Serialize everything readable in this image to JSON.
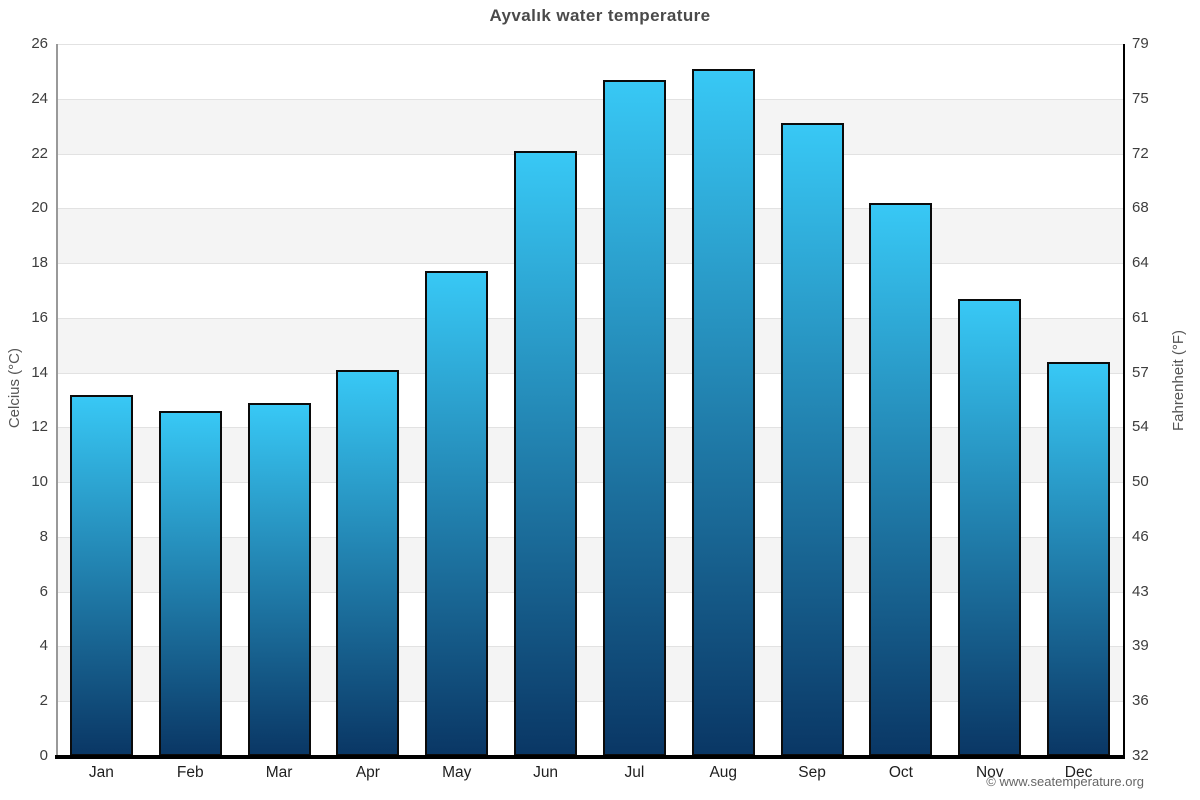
{
  "title": "Ayvalık water temperature",
  "footer": "© www.seatemperature.org",
  "y_axis_left": {
    "label": "Celcius (°C)"
  },
  "y_axis_right": {
    "label": "Fahrenheit (°F)"
  },
  "chart_data": {
    "type": "bar",
    "title": "Ayvalık water temperature",
    "categories": [
      "Jan",
      "Feb",
      "Mar",
      "Apr",
      "May",
      "Jun",
      "Jul",
      "Aug",
      "Sep",
      "Oct",
      "Nov",
      "Dec"
    ],
    "values": [
      13.2,
      12.6,
      12.9,
      14.1,
      17.7,
      22.1,
      24.7,
      25.1,
      23.1,
      20.2,
      16.7,
      14.4
    ],
    "ylabel_left": "Celcius (°C)",
    "ylabel_right": "Fahrenheit (°F)",
    "ylim": [
      0,
      26
    ],
    "celsius_ticks": [
      26,
      24,
      22,
      20,
      18,
      16,
      14,
      12,
      10,
      8,
      6,
      4,
      2,
      0
    ],
    "fahrenheit_ticks": [
      79,
      75,
      72,
      68,
      64,
      61,
      57,
      54,
      50,
      46,
      43,
      39,
      36,
      32
    ],
    "grid_on": true,
    "legend_position": "none",
    "colors": {
      "bar_gradient_top": "#38c8f5",
      "bar_gradient_bottom": "#0a3765",
      "bar_border": "#0b0b0b",
      "band": "#f4f4f4",
      "gridline": "#e2e2e2",
      "title_text": "#4a4a4a",
      "tick_text": "#3d3d3d",
      "footer_text": "#666666"
    }
  }
}
